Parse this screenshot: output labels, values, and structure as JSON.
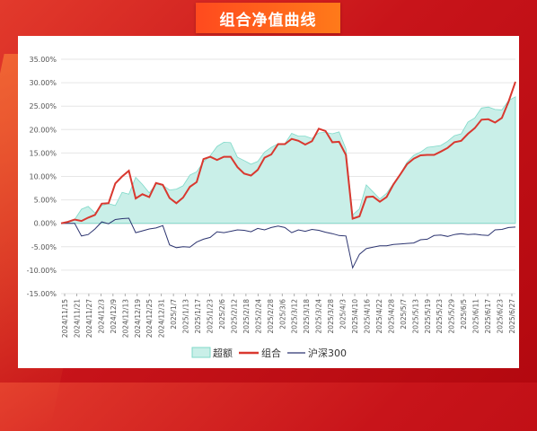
{
  "header": {
    "title": "组合净值曲线"
  },
  "colors": {
    "excess_fill": "#c9efe8",
    "excess_stroke": "#7fd9c9",
    "portfolio": "#d9382f",
    "csi300": "#2c3470"
  },
  "chart_data": {
    "type": "line",
    "ylim": [
      -15,
      35
    ],
    "y_ticks": [
      "35.00%",
      "30.00%",
      "25.00%",
      "20.00%",
      "15.00%",
      "10.00%",
      "5.00%",
      "0.00%",
      "-5.00%",
      "-10.00%",
      "-15.00%"
    ],
    "x_ticks": [
      "2024/11/15",
      "2024/11/21",
      "2024/11/27",
      "2024/12/3",
      "2024/12/9",
      "2024/12/13",
      "2024/12/19",
      "2024/12/25",
      "2024/12/31",
      "2025/1/7",
      "2025/1/13",
      "2025/1/17",
      "2025/1/23",
      "2025/2/6",
      "2025/2/12",
      "2025/2/18",
      "2025/2/24",
      "2025/2/28",
      "2025/3/6",
      "2025/3/12",
      "2025/3/18",
      "2025/3/24",
      "2025/3/28",
      "2025/4/3",
      "2025/4/10",
      "2025/4/16",
      "2025/4/22",
      "2025/4/28",
      "2025/5/7",
      "2025/5/13",
      "2025/5/19",
      "2025/5/23",
      "2025/5/29",
      "2025/6/5",
      "2025/6/11",
      "2025/6/17",
      "2025/6/23",
      "2025/6/27"
    ],
    "legend": [
      "超额",
      "组合",
      "沪深300"
    ],
    "series": [
      {
        "name": "超额",
        "type": "area",
        "values": [
          0.0,
          0.4,
          0.8,
          3.0,
          3.6,
          2.2,
          3.8,
          4.2,
          3.8,
          6.6,
          6.2,
          9.8,
          8.3,
          6.5,
          8.4,
          8.1,
          7.1,
          7.3,
          8.0,
          10.3,
          11.0,
          13.1,
          14.4,
          16.4,
          17.3,
          17.2,
          14.1,
          13.4,
          12.6,
          13.2,
          15.2,
          16.2,
          17.0,
          17.0,
          19.2,
          18.6,
          18.6,
          18.1,
          19.3,
          19.4,
          19.1,
          19.5,
          15.9,
          1.8,
          3.1,
          8.2,
          6.7,
          5.2,
          6.4,
          8.5,
          10.5,
          13.0,
          14.5,
          15.2,
          16.2,
          16.4,
          16.6,
          17.5,
          18.7,
          19.1,
          21.6,
          22.5,
          24.6,
          24.8,
          24.3,
          24.2,
          26.2,
          27.0
        ]
      },
      {
        "name": "组合",
        "type": "line",
        "values": [
          0.0,
          0.3,
          0.8,
          0.5,
          1.2,
          1.8,
          4.2,
          4.3,
          8.5,
          10.0,
          11.2,
          5.3,
          6.2,
          5.6,
          8.6,
          8.2,
          5.4,
          4.3,
          5.5,
          7.8,
          8.8,
          13.7,
          14.2,
          13.5,
          14.2,
          14.2,
          12.0,
          10.6,
          10.2,
          11.4,
          14.0,
          14.7,
          16.9,
          16.9,
          18.0,
          17.6,
          16.8,
          17.5,
          20.2,
          19.7,
          17.3,
          17.4,
          14.6,
          1.0,
          1.5,
          5.6,
          5.7,
          4.6,
          5.6,
          8.3,
          10.4,
          12.6,
          13.8,
          14.5,
          14.6,
          14.6,
          15.3,
          16.1,
          17.3,
          17.6,
          19.1,
          20.3,
          22.1,
          22.2,
          21.5,
          22.5,
          26.0,
          30.2
        ]
      },
      {
        "name": "沪深300",
        "type": "line",
        "values": [
          0.0,
          0.0,
          0.0,
          -2.7,
          -2.4,
          -1.2,
          0.3,
          -0.1,
          0.8,
          1.0,
          1.1,
          -2.0,
          -1.6,
          -1.2,
          -1.0,
          -0.5,
          -4.6,
          -5.2,
          -5.0,
          -5.1,
          -4.0,
          -3.4,
          -3.0,
          -1.8,
          -2.0,
          -1.7,
          -1.4,
          -1.5,
          -1.8,
          -1.1,
          -1.4,
          -0.9,
          -0.6,
          -0.9,
          -2.0,
          -1.4,
          -1.7,
          -1.3,
          -1.5,
          -1.9,
          -2.2,
          -2.6,
          -2.7,
          -9.5,
          -6.6,
          -5.4,
          -5.1,
          -4.8,
          -4.8,
          -4.5,
          -4.4,
          -4.3,
          -4.2,
          -3.5,
          -3.4,
          -2.6,
          -2.5,
          -2.8,
          -2.4,
          -2.2,
          -2.4,
          -2.3,
          -2.5,
          -2.6,
          -1.4,
          -1.3,
          -0.9,
          -0.8
        ]
      }
    ]
  }
}
